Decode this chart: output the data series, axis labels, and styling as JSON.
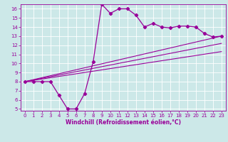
{
  "xlabel": "Windchill (Refroidissement éolien,°C)",
  "bg_color": "#cce8e8",
  "grid_color": "#ffffff",
  "line_color": "#990099",
  "xlim": [
    -0.5,
    23.5
  ],
  "ylim": [
    4.8,
    16.5
  ],
  "xticks": [
    0,
    1,
    2,
    3,
    4,
    5,
    6,
    7,
    8,
    9,
    10,
    11,
    12,
    13,
    14,
    15,
    16,
    17,
    18,
    19,
    20,
    21,
    22,
    23
  ],
  "yticks": [
    5,
    6,
    7,
    8,
    9,
    10,
    11,
    12,
    13,
    14,
    15,
    16
  ],
  "curve1_x": [
    0,
    1,
    2,
    3,
    4,
    5,
    6,
    7,
    8,
    9,
    10,
    11,
    12,
    13,
    14,
    15,
    16,
    17,
    18,
    19,
    20,
    21,
    22,
    23
  ],
  "curve1_y": [
    8.0,
    8.0,
    8.0,
    8.0,
    6.5,
    5.0,
    5.0,
    6.7,
    10.2,
    16.5,
    15.5,
    16.0,
    16.0,
    15.3,
    14.0,
    14.4,
    14.0,
    13.9,
    14.1,
    14.1,
    14.0,
    13.3,
    12.9,
    13.0
  ],
  "line1_x": [
    0,
    23
  ],
  "line1_y": [
    8.0,
    13.0
  ],
  "line2_x": [
    0,
    23
  ],
  "line2_y": [
    8.0,
    12.2
  ],
  "line3_x": [
    0,
    23
  ],
  "line3_y": [
    8.0,
    11.3
  ]
}
